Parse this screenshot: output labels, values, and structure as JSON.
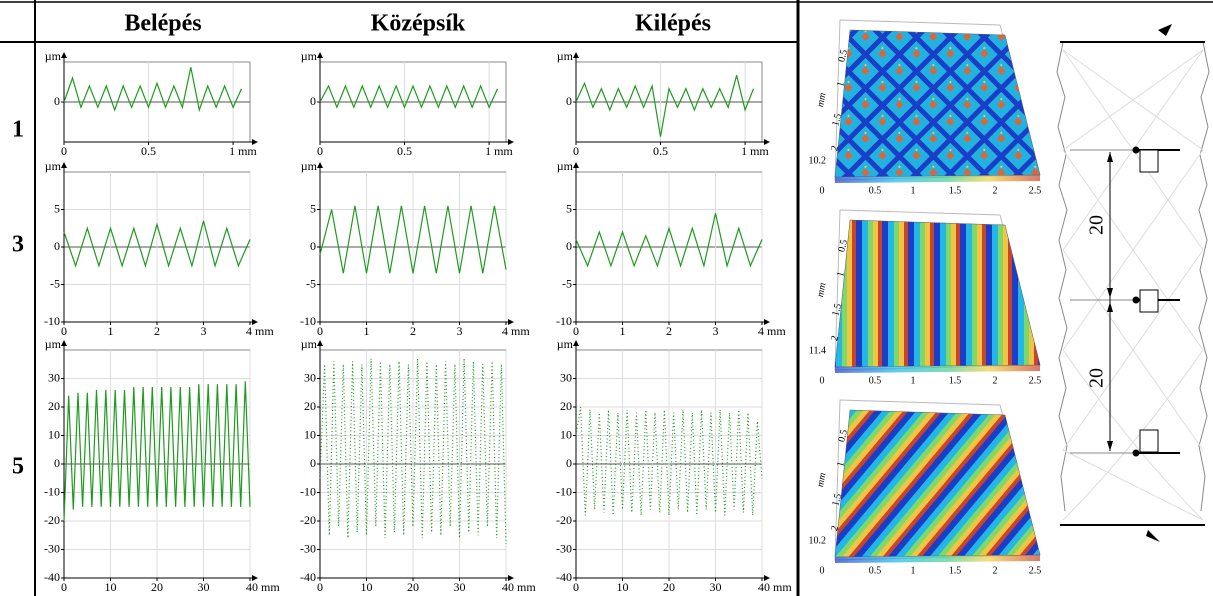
{
  "table": {
    "columns": [
      "Belépés",
      "Középsík",
      "Kilépés"
    ],
    "rows": [
      "1",
      "3",
      "5"
    ]
  },
  "chart_data": [
    {
      "type": "line",
      "y_label": "µm",
      "color": "#1e9b1e",
      "line_style": "solid",
      "grid": true,
      "x": [
        0,
        0.05,
        0.1,
        0.15,
        0.2,
        0.25,
        0.3,
        0.35,
        0.4,
        0.45,
        0.5,
        0.55,
        0.6,
        0.65,
        0.7,
        0.75,
        0.8,
        0.85,
        0.9,
        0.95,
        1,
        1.05
      ],
      "values": [
        0,
        0.9,
        -0.2,
        0.6,
        -0.2,
        0.6,
        -0.3,
        0.6,
        -0.2,
        0.6,
        -0.2,
        0.7,
        -0.2,
        0.6,
        -0.2,
        1.3,
        -0.3,
        0.6,
        -0.2,
        0.6,
        -0.2,
        0.5
      ],
      "xlim": [
        0,
        1.1
      ],
      "xticks": [
        0,
        0.5,
        {
          "value": 1,
          "label": "1 mm"
        }
      ],
      "ylim": [
        -1.5,
        1.5
      ],
      "yticks": [
        0
      ]
    },
    {
      "type": "line",
      "y_label": "µm",
      "color": "#1e9b1e",
      "line_style": "solid",
      "grid": true,
      "x": [
        0,
        0.05,
        0.1,
        0.15,
        0.2,
        0.25,
        0.3,
        0.35,
        0.4,
        0.45,
        0.5,
        0.55,
        0.6,
        0.65,
        0.7,
        0.75,
        0.8,
        0.85,
        0.9,
        0.95,
        1,
        1.05
      ],
      "values": [
        0,
        0.6,
        -0.2,
        0.6,
        -0.2,
        0.6,
        -0.2,
        0.6,
        -0.2,
        0.6,
        -0.2,
        0.6,
        -0.2,
        0.6,
        -0.2,
        0.6,
        -0.2,
        0.6,
        -0.2,
        0.6,
        -0.2,
        0.5
      ],
      "xlim": [
        0,
        1.1
      ],
      "xticks": [
        0,
        0.5,
        {
          "value": 1,
          "label": "1 mm"
        }
      ],
      "ylim": [
        -1.5,
        1.5
      ],
      "yticks": [
        0
      ]
    },
    {
      "type": "line",
      "y_label": "µm",
      "color": "#1e9b1e",
      "line_style": "solid",
      "grid": true,
      "x": [
        0,
        0.05,
        0.1,
        0.15,
        0.2,
        0.25,
        0.3,
        0.35,
        0.4,
        0.45,
        0.5,
        0.55,
        0.6,
        0.65,
        0.7,
        0.75,
        0.8,
        0.85,
        0.9,
        0.95,
        1,
        1.05
      ],
      "values": [
        0,
        0.7,
        -0.2,
        0.5,
        -0.3,
        0.5,
        -0.2,
        0.6,
        -0.2,
        0.6,
        -1.3,
        0.5,
        -0.2,
        0.5,
        -0.3,
        0.5,
        -0.2,
        0.5,
        -0.2,
        1.0,
        -0.3,
        0.5
      ],
      "xlim": [
        0,
        1.1
      ],
      "xticks": [
        0,
        0.5,
        {
          "value": 1,
          "label": "1 mm"
        }
      ],
      "ylim": [
        -1.5,
        1.5
      ],
      "yticks": [
        0
      ]
    },
    {
      "type": "line",
      "y_label": "µm",
      "color": "#1e9b1e",
      "line_style": "solid",
      "grid": true,
      "x": [
        0,
        0.25,
        0.5,
        0.75,
        1,
        1.25,
        1.5,
        1.75,
        2,
        2.25,
        2.5,
        2.75,
        3,
        3.25,
        3.5,
        3.75,
        4
      ],
      "values": [
        2,
        -2.5,
        2.5,
        -2.5,
        2.5,
        -2.5,
        2.5,
        -2.5,
        3,
        -2.5,
        2.5,
        -2.5,
        3.5,
        -2.5,
        2.5,
        -2.5,
        1
      ],
      "xlim": [
        0,
        4
      ],
      "xticks": [
        0,
        1,
        2,
        3,
        {
          "value": 4,
          "label": "4 mm"
        }
      ],
      "ylim": [
        -10,
        10
      ],
      "yticks": [
        -10,
        -5,
        0,
        5
      ]
    },
    {
      "type": "line",
      "y_label": "µm",
      "color": "#1e9b1e",
      "line_style": "solid",
      "grid": true,
      "x": [
        0,
        0.25,
        0.5,
        0.75,
        1,
        1.25,
        1.5,
        1.75,
        2,
        2.25,
        2.5,
        2.75,
        3,
        3.25,
        3.5,
        3.75,
        4
      ],
      "values": [
        -1,
        5,
        -3.5,
        5.5,
        -3.5,
        5.5,
        -3.5,
        5.5,
        -3.5,
        5.5,
        -3.5,
        5.5,
        -3.5,
        5.5,
        -3.5,
        5.5,
        -3
      ],
      "xlim": [
        0,
        4
      ],
      "xticks": [
        0,
        1,
        2,
        3,
        {
          "value": 4,
          "label": "4 mm"
        }
      ],
      "ylim": [
        -10,
        10
      ],
      "yticks": [
        -10,
        -5,
        0,
        5
      ]
    },
    {
      "type": "line",
      "y_label": "µm",
      "color": "#1e9b1e",
      "line_style": "solid",
      "grid": true,
      "x": [
        0,
        0.25,
        0.5,
        0.75,
        1,
        1.25,
        1.5,
        1.75,
        2,
        2.25,
        2.5,
        2.75,
        3,
        3.25,
        3.5,
        3.75,
        4
      ],
      "values": [
        1,
        -2.5,
        2,
        -2.5,
        2,
        -2.5,
        1.5,
        -2.5,
        2.5,
        -2.5,
        2.5,
        -2.5,
        4.5,
        -2.5,
        2.5,
        -2.5,
        1
      ],
      "xlim": [
        0,
        4
      ],
      "xticks": [
        0,
        1,
        2,
        3,
        {
          "value": 4,
          "label": "4 mm"
        }
      ],
      "ylim": [
        -10,
        10
      ],
      "yticks": [
        -10,
        -5,
        0,
        5
      ]
    },
    {
      "type": "line",
      "y_label": "µm",
      "color": "#1e9b1e",
      "line_style": "solid",
      "grid": true,
      "x": [
        0,
        1,
        2,
        3,
        4,
        5,
        6,
        7,
        8,
        9,
        10,
        11,
        12,
        13,
        14,
        15,
        16,
        17,
        18,
        19,
        20,
        21,
        22,
        23,
        24,
        25,
        26,
        27,
        28,
        29,
        30,
        31,
        32,
        33,
        34,
        35,
        36,
        37,
        38,
        39,
        40
      ],
      "values": [
        -20,
        24,
        -16,
        25,
        -15,
        25,
        -15,
        26,
        -15,
        26,
        -15,
        26,
        -15,
        26,
        -15,
        27,
        -15,
        27,
        -15,
        27,
        -15,
        27,
        -15,
        27,
        -15,
        27,
        -15,
        27,
        -15,
        28,
        -15,
        28,
        -15,
        28,
        -15,
        28,
        -15,
        28,
        -15,
        29,
        -15
      ],
      "xlim": [
        0,
        40
      ],
      "xticks": [
        0,
        10,
        20,
        30,
        {
          "value": 40,
          "label": "40 mm"
        }
      ],
      "ylim": [
        -40,
        40
      ],
      "yticks": [
        -40,
        -30,
        -20,
        -10,
        0,
        10,
        20,
        30
      ]
    },
    {
      "type": "line",
      "y_label": "µm",
      "color": "#1e9b1e",
      "line_style": "dotted",
      "grid": true,
      "x": [
        0,
        1,
        2,
        3,
        4,
        5,
        6,
        7,
        8,
        9,
        10,
        11,
        12,
        13,
        14,
        15,
        16,
        17,
        18,
        19,
        20,
        21,
        22,
        23,
        24,
        25,
        26,
        27,
        28,
        29,
        30,
        31,
        32,
        33,
        34,
        35,
        36,
        37,
        38,
        39,
        40
      ],
      "values": [
        -5,
        35,
        -25,
        36,
        -22,
        35,
        -26,
        36,
        -24,
        35,
        -25,
        37,
        -22,
        36,
        -26,
        35,
        -24,
        36,
        -25,
        35,
        -22,
        37,
        -26,
        36,
        -24,
        35,
        -25,
        36,
        -22,
        35,
        -26,
        37,
        -24,
        36,
        -25,
        35,
        -22,
        36,
        -26,
        35,
        -28
      ],
      "xlim": [
        0,
        40
      ],
      "xticks": [
        0,
        10,
        20,
        30,
        {
          "value": 40,
          "label": "40 mm"
        }
      ],
      "ylim": [
        -40,
        40
      ],
      "yticks": [
        -40,
        -30,
        -20,
        -10,
        0,
        10,
        20,
        30
      ]
    },
    {
      "type": "line",
      "y_label": "µm",
      "color": "#1e9b1e",
      "line_style": "dotted",
      "grid": true,
      "x": [
        0,
        1,
        2,
        3,
        4,
        5,
        6,
        7,
        8,
        9,
        10,
        11,
        12,
        13,
        14,
        15,
        16,
        17,
        18,
        19,
        20,
        21,
        22,
        23,
        24,
        25,
        26,
        27,
        28,
        29,
        30,
        31,
        32,
        33,
        34,
        35,
        36,
        37,
        38,
        39,
        40
      ],
      "values": [
        10,
        20,
        -18,
        19,
        -16,
        18,
        -17,
        19,
        -18,
        18,
        -16,
        19,
        -17,
        18,
        -18,
        19,
        -16,
        18,
        -17,
        19,
        -18,
        18,
        -16,
        19,
        -17,
        18,
        -18,
        19,
        -16,
        18,
        -17,
        19,
        -18,
        18,
        -16,
        19,
        -17,
        18,
        -18,
        15,
        -5
      ],
      "xlim": [
        0,
        40
      ],
      "xticks": [
        0,
        10,
        20,
        30,
        {
          "value": 40,
          "label": "40 mm"
        }
      ],
      "ylim": [
        -40,
        40
      ],
      "yticks": [
        -40,
        -30,
        -20,
        -10,
        0,
        10,
        20,
        30
      ]
    }
  ],
  "surfaces": [
    {
      "z_label": "10.2",
      "unit": "mm",
      "x_ticks": [
        "0",
        "0.5",
        "1",
        "1.5",
        "2",
        "2.5"
      ],
      "y_ticks": [
        "0.5",
        "1",
        "1.5",
        "2"
      ]
    },
    {
      "z_label": "11.4",
      "unit": "mm",
      "x_ticks": [
        "0",
        "0.5",
        "1",
        "1.5",
        "2",
        "2.5"
      ],
      "y_ticks": [
        "0.5",
        "1",
        "1.5",
        "2"
      ]
    },
    {
      "z_label": "10.2",
      "unit": "mm",
      "x_ticks": [
        "0",
        "0.5",
        "1",
        "1.5",
        "2",
        "2.5"
      ],
      "y_ticks": [
        "0.5",
        "1",
        "1.5",
        "2"
      ]
    }
  ],
  "diagram": {
    "dims": [
      "20",
      "20"
    ]
  }
}
